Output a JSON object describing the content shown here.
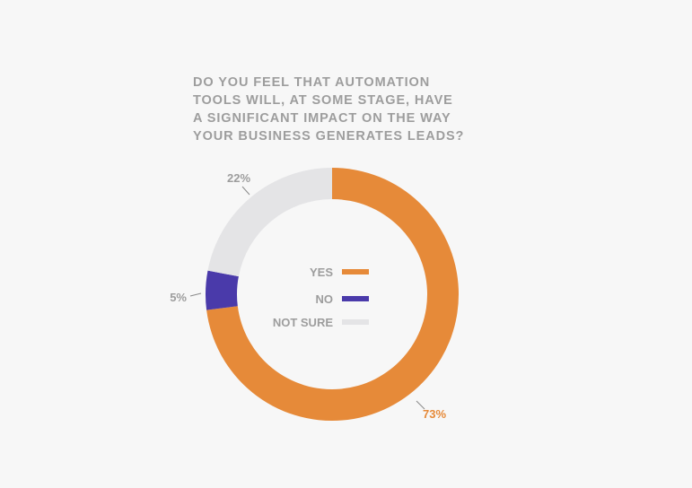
{
  "chart_data": {
    "type": "pie",
    "style": "donut",
    "title_lines": [
      "DO YOU FEEL THAT AUTOMATION",
      "TOOLS WILL, AT SOME STAGE, HAVE",
      "A SIGNIFICANT IMPACT ON THE WAY",
      "YOUR BUSINESS GENERATES LEADS?"
    ],
    "slices": [
      {
        "label": "YES",
        "value": 73,
        "display": "73%",
        "color": "#e68a39",
        "label_color": "#e68a39"
      },
      {
        "label": "NO",
        "value": 5,
        "display": "5%",
        "color": "#4a3aaa",
        "label_color": "#9d9d9d"
      },
      {
        "label": "NOT SURE",
        "value": 22,
        "display": "22%",
        "color": "#e4e4e6",
        "label_color": "#9d9d9d"
      }
    ],
    "legend_position": "center"
  }
}
